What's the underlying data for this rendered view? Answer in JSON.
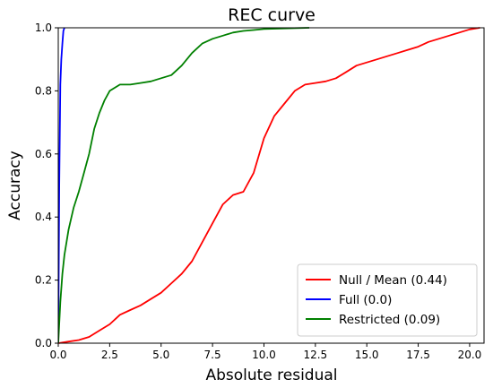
{
  "chart_data": {
    "type": "line",
    "title": "REC curve",
    "xlabel": "Absolute residual",
    "ylabel": "Accuracy",
    "xlim": [
      0,
      20.7
    ],
    "ylim": [
      0,
      1.0
    ],
    "xticks": [
      "0.0",
      "2.5",
      "5.0",
      "7.5",
      "10.0",
      "12.5",
      "15.0",
      "17.5",
      "20.0"
    ],
    "xtick_values": [
      0,
      2.5,
      5.0,
      7.5,
      10.0,
      12.5,
      15.0,
      17.5,
      20.0
    ],
    "yticks": [
      "0.0",
      "0.2",
      "0.4",
      "0.6",
      "0.8",
      "1.0"
    ],
    "ytick_values": [
      0,
      0.2,
      0.4,
      0.6,
      0.8,
      1.0
    ],
    "grid": false,
    "legend_position": "lower-right",
    "series": [
      {
        "name": "Null / Mean (0.44)",
        "color": "#ff0000",
        "x": [
          0,
          0.5,
          1.0,
          1.5,
          2.0,
          2.5,
          3.0,
          3.5,
          4.0,
          4.5,
          5.0,
          5.5,
          6.0,
          6.5,
          7.0,
          7.5,
          8.0,
          8.5,
          9.0,
          9.5,
          10.0,
          10.5,
          11.0,
          11.5,
          12.0,
          12.5,
          13.0,
          13.5,
          14.0,
          14.5,
          15.0,
          15.5,
          16.0,
          16.5,
          17.0,
          17.5,
          18.0,
          18.5,
          19.0,
          19.5,
          20.0,
          20.5
        ],
        "y": [
          0,
          0.005,
          0.01,
          0.02,
          0.04,
          0.06,
          0.09,
          0.105,
          0.12,
          0.14,
          0.16,
          0.19,
          0.22,
          0.26,
          0.32,
          0.38,
          0.44,
          0.47,
          0.48,
          0.54,
          0.65,
          0.72,
          0.76,
          0.8,
          0.82,
          0.825,
          0.83,
          0.84,
          0.86,
          0.88,
          0.89,
          0.9,
          0.91,
          0.92,
          0.93,
          0.94,
          0.955,
          0.965,
          0.975,
          0.985,
          0.995,
          1.0
        ]
      },
      {
        "name": "Full (0.0)",
        "color": "#0000ff",
        "x": [
          0,
          0.05,
          0.1,
          0.15,
          0.2,
          0.25,
          0.3
        ],
        "y": [
          0,
          0.5,
          0.82,
          0.9,
          0.95,
          0.99,
          1.0
        ]
      },
      {
        "name": "Restricted (0.09)",
        "color": "#008000",
        "x": [
          0,
          0.1,
          0.2,
          0.3,
          0.5,
          0.75,
          1.0,
          1.25,
          1.5,
          1.75,
          2.0,
          2.25,
          2.5,
          3.0,
          3.5,
          4.0,
          4.5,
          5.0,
          5.5,
          6.0,
          6.5,
          7.0,
          7.5,
          8.0,
          8.5,
          9.0,
          9.5,
          10.0,
          11.0,
          12.2
        ],
        "y": [
          0,
          0.13,
          0.22,
          0.28,
          0.36,
          0.43,
          0.48,
          0.54,
          0.6,
          0.68,
          0.73,
          0.77,
          0.8,
          0.82,
          0.82,
          0.825,
          0.83,
          0.84,
          0.85,
          0.88,
          0.92,
          0.95,
          0.965,
          0.975,
          0.985,
          0.99,
          0.993,
          0.996,
          0.998,
          1.0
        ]
      }
    ]
  }
}
